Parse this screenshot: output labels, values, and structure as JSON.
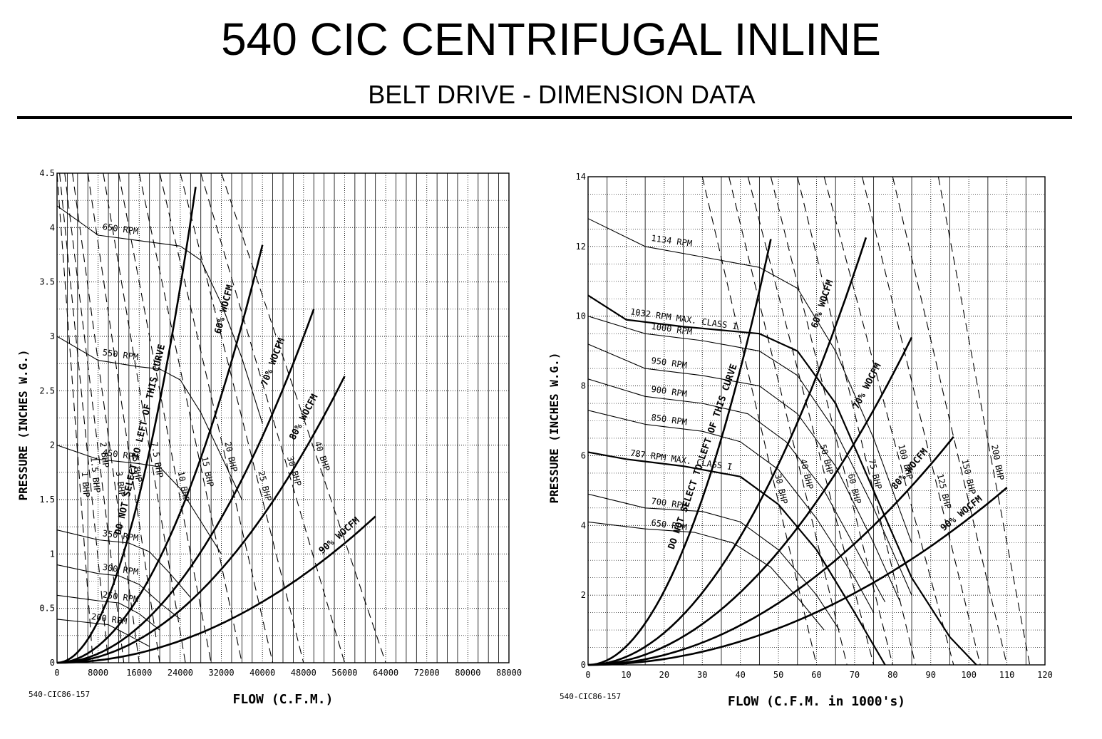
{
  "header": {
    "title": "540  CIC CENTRIFUGAL INLINE",
    "subtitle": "BELT DRIVE - DIMENSION DATA"
  },
  "chart_data": [
    {
      "type": "line",
      "xlabel": "FLOW (C.F.M.)",
      "ylabel": "PRESSURE (INCHES W.G.)",
      "xlim": [
        0,
        88000
      ],
      "ylim": [
        0,
        4.5
      ],
      "xticks": [
        0,
        8000,
        16000,
        24000,
        32000,
        40000,
        48000,
        56000,
        64000,
        72000,
        80000,
        88000
      ],
      "yticks": [
        0,
        0.5,
        1,
        1.5,
        2,
        2.5,
        3,
        3.5,
        4,
        4.5
      ],
      "grid": true,
      "code": "540-CIC86-157",
      "annotation": "DO NOT SELECT TO LEFT OF THIS CURVE",
      "rpm_curves": [
        {
          "label": "650 RPM",
          "x": [
            0,
            8000,
            16000,
            24000,
            28000,
            32000,
            36000,
            40000
          ],
          "y": [
            4.2,
            3.93,
            3.88,
            3.83,
            3.7,
            3.3,
            2.8,
            2.2
          ]
        },
        {
          "label": "550 RPM",
          "x": [
            0,
            8000,
            16000,
            20000,
            24000,
            28000,
            32000,
            36000
          ],
          "y": [
            3.0,
            2.78,
            2.72,
            2.7,
            2.6,
            2.3,
            1.9,
            1.5
          ]
        },
        {
          "label": "450 RPM",
          "x": [
            0,
            8000,
            16000,
            20000,
            24000,
            28000,
            32000
          ],
          "y": [
            2.0,
            1.87,
            1.83,
            1.8,
            1.6,
            1.3,
            1.0
          ]
        },
        {
          "label": "350 RPM",
          "x": [
            0,
            8000,
            14000,
            18000,
            22000,
            26000
          ],
          "y": [
            1.22,
            1.13,
            1.1,
            1.02,
            0.82,
            0.6
          ]
        },
        {
          "label": "300 RPM",
          "x": [
            0,
            8000,
            12000,
            16000,
            20000,
            24000
          ],
          "y": [
            0.9,
            0.82,
            0.8,
            0.72,
            0.55,
            0.4
          ]
        },
        {
          "label": "250 RPM",
          "x": [
            0,
            8000,
            12000,
            16000,
            20000
          ],
          "y": [
            0.62,
            0.57,
            0.55,
            0.45,
            0.3
          ]
        },
        {
          "label": "200 RPM",
          "x": [
            0,
            6000,
            10000,
            14000,
            18000
          ],
          "y": [
            0.4,
            0.37,
            0.35,
            0.25,
            0.15
          ]
        }
      ],
      "bhp_labels": [
        "40 BHP",
        "30 BHP",
        "25 BHP",
        "20 BHP",
        "15 BHP",
        "10 BHP",
        "7.5 BHP",
        "5 BHP",
        "3 BHP",
        "2 BHP",
        "1.5 BHP",
        "1 BHP"
      ],
      "bhp_lines": [
        {
          "x": [
            32000,
            64000
          ]
        },
        {
          "x": [
            28000,
            56000
          ]
        },
        {
          "x": [
            24000,
            48000
          ]
        },
        {
          "x": [
            20000,
            42000
          ]
        },
        {
          "x": [
            16000,
            36000
          ]
        },
        {
          "x": [
            12000,
            30000
          ]
        },
        {
          "x": [
            9000,
            25000
          ]
        },
        {
          "x": [
            6000,
            20000
          ]
        },
        {
          "x": [
            3000,
            16000
          ]
        },
        {
          "x": [
            1500,
            13000
          ]
        },
        {
          "x": [
            500,
            10000
          ]
        },
        {
          "x": [
            0,
            7000
          ]
        }
      ],
      "woc_curves": [
        {
          "label": "",
          "k": 6e-09,
          "xmax": 27000
        },
        {
          "label": "60% WOCFM",
          "k": 2.4e-09,
          "xmax": 40000
        },
        {
          "label": "70% WOCFM",
          "k": 1.3e-09,
          "xmax": 50000
        },
        {
          "label": "80% WOCFM",
          "k": 8.4e-10,
          "xmax": 56000
        },
        {
          "label": "90% WOCFM",
          "k": 3.5e-10,
          "xmax": 62000
        }
      ]
    },
    {
      "type": "line",
      "xlabel": "FLOW (C.F.M. in 1000's)",
      "ylabel": "PRESSURE (INCHES W.G.)",
      "xlim": [
        0,
        120
      ],
      "ylim": [
        0,
        14
      ],
      "xticks": [
        0,
        10,
        20,
        30,
        40,
        50,
        60,
        70,
        80,
        90,
        100,
        110,
        120
      ],
      "yticks": [
        0,
        2,
        4,
        6,
        8,
        10,
        12,
        14
      ],
      "grid": true,
      "code": "540-CIC86-157",
      "annotation": "DO NOT SELECT TO LEFT OF THIS CURVE",
      "rpm_curves": [
        {
          "label": "1134 RPM",
          "x": [
            0,
            15,
            30,
            45,
            55,
            65,
            75,
            85
          ],
          "y": [
            12.8,
            12.0,
            11.7,
            11.4,
            10.8,
            9.0,
            6.5,
            3.5
          ]
        },
        {
          "label": "1032 RPM MAX. CLASS I",
          "x": [
            0,
            10,
            25,
            45,
            55,
            65,
            75,
            85,
            95,
            102
          ],
          "y": [
            10.6,
            9.9,
            9.7,
            9.5,
            9.0,
            7.5,
            5.0,
            2.5,
            0.8,
            0
          ]
        },
        {
          "label": "1000 RPM",
          "x": [
            0,
            15,
            30,
            45,
            55,
            65,
            75,
            85
          ],
          "y": [
            10.0,
            9.5,
            9.3,
            9.0,
            8.3,
            6.7,
            4.5,
            2.0
          ]
        },
        {
          "label": "950 RPM",
          "x": [
            0,
            15,
            30,
            45,
            55,
            65,
            75,
            82
          ],
          "y": [
            9.2,
            8.5,
            8.3,
            8.0,
            7.2,
            5.7,
            3.5,
            1.8
          ]
        },
        {
          "label": "900 RPM",
          "x": [
            0,
            15,
            30,
            42,
            52,
            62,
            72,
            78
          ],
          "y": [
            8.2,
            7.7,
            7.5,
            7.2,
            6.4,
            5.0,
            3.0,
            1.8
          ]
        },
        {
          "label": "850 RPM",
          "x": [
            0,
            15,
            30,
            40,
            50,
            60,
            70,
            75
          ],
          "y": [
            7.3,
            6.9,
            6.7,
            6.4,
            5.6,
            4.2,
            2.5,
            1.5
          ]
        },
        {
          "label": "787 RPM MAX. CLASS I",
          "x": [
            0,
            10,
            25,
            40,
            50,
            60,
            70,
            78
          ],
          "y": [
            6.1,
            5.9,
            5.7,
            5.4,
            4.6,
            3.3,
            1.5,
            0
          ]
        },
        {
          "label": "700 RPM",
          "x": [
            0,
            15,
            30,
            40,
            50,
            60,
            66
          ],
          "y": [
            4.9,
            4.5,
            4.4,
            4.1,
            3.3,
            2.0,
            1.0
          ]
        },
        {
          "label": "650 RPM",
          "x": [
            0,
            15,
            28,
            38,
            48,
            56,
            62
          ],
          "y": [
            4.1,
            3.9,
            3.8,
            3.5,
            2.8,
            1.8,
            1.0
          ]
        }
      ],
      "bhp_labels": [
        "200 BHP",
        "150 BHP",
        "125 BHP",
        "100 BHP",
        "75 BHP",
        "60 BHP",
        "50 BHP",
        "40 BHP",
        "30 BHP"
      ],
      "bhp_lines": [
        {
          "x": [
            92,
            116
          ]
        },
        {
          "x": [
            80,
            110
          ]
        },
        {
          "x": [
            72,
            103
          ]
        },
        {
          "x": [
            62,
            96
          ]
        },
        {
          "x": [
            55,
            86
          ]
        },
        {
          "x": [
            48,
            80
          ]
        },
        {
          "x": [
            42,
            75
          ]
        },
        {
          "x": [
            37,
            68
          ]
        },
        {
          "x": [
            30,
            60
          ]
        }
      ],
      "woc_curves": [
        {
          "label": "",
          "k": 0.0053,
          "xmax": 48
        },
        {
          "label": "60% WOCFM",
          "k": 0.0023,
          "xmax": 73
        },
        {
          "label": "70% WOCFM",
          "k": 0.0013,
          "xmax": 85
        },
        {
          "label": "80% WOCFM",
          "k": 0.00071,
          "xmax": 96
        },
        {
          "label": "90% WOCFM",
          "k": 0.00042,
          "xmax": 110
        }
      ]
    }
  ]
}
